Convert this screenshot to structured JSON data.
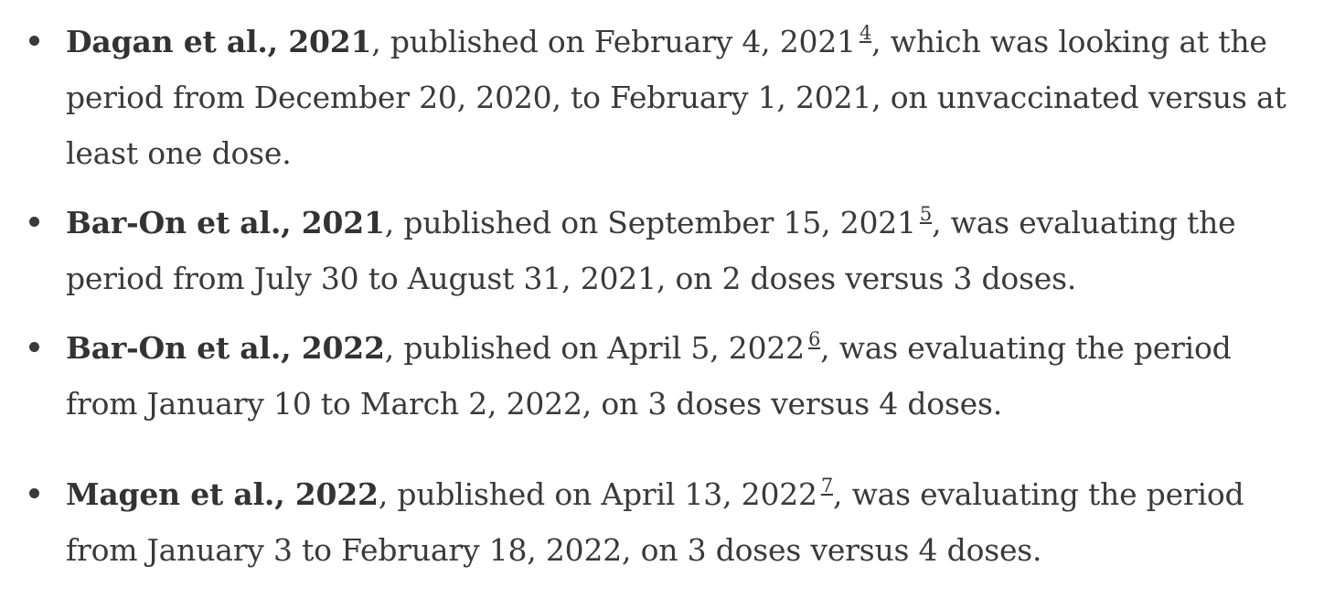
{
  "studies": [
    {
      "author": "Dagan et al., 2021",
      "published": ", published on February 4, 2021",
      "ref": "4",
      "rest": ", which was looking at the period from December 20, 2020, to February 1, 2021, on unvaccinated versus at least one dose."
    },
    {
      "author": "Bar-On et al., 2021",
      "published": ", published on September 15, 2021",
      "ref": "5",
      "rest": ", was evaluating the period from July 30 to August 31, 2021, on 2 doses versus 3 doses."
    },
    {
      "author": "Bar-On et al., 2022",
      "published": ", published on April 5, 2022",
      "ref": "6",
      "rest": ", was evaluating the period from January 10 to March 2, 2022, on 3 doses versus 4 doses."
    },
    {
      "author": "Magen et al., 2022",
      "published": ", published on April 13, 2022",
      "ref": "7",
      "rest": ", was evaluating the period from January 3 to February 18, 2022, on 3 doses versus 4 doses."
    }
  ]
}
